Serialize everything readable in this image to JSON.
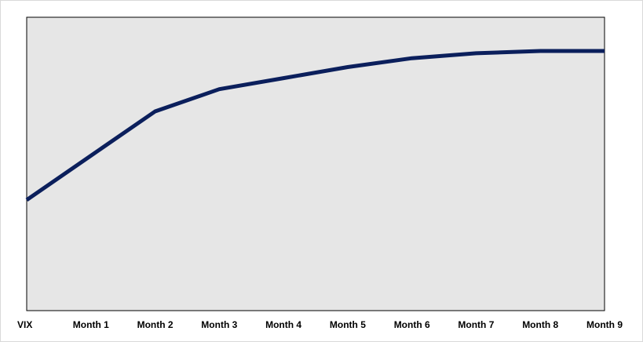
{
  "chart_data": {
    "type": "line",
    "categories": [
      "VIX",
      "Month 1",
      "Month 2",
      "Month 3",
      "Month 4",
      "Month 5",
      "Month 6",
      "Month 7",
      "Month 8",
      "Month 9"
    ],
    "series": [
      {
        "values": [
          20.0,
          28.0,
          36.0,
          40.0,
          42.0,
          44.0,
          45.6,
          46.5,
          46.9,
          46.9
        ]
      }
    ],
    "ylim": [
      0,
      53
    ],
    "title": "",
    "xlabel": "",
    "ylabel": "",
    "grid": false,
    "legend": "none",
    "colors": {
      "line": "#0b1f5c",
      "plot_background": "#e6e6e6",
      "plot_border": "#000000"
    }
  }
}
